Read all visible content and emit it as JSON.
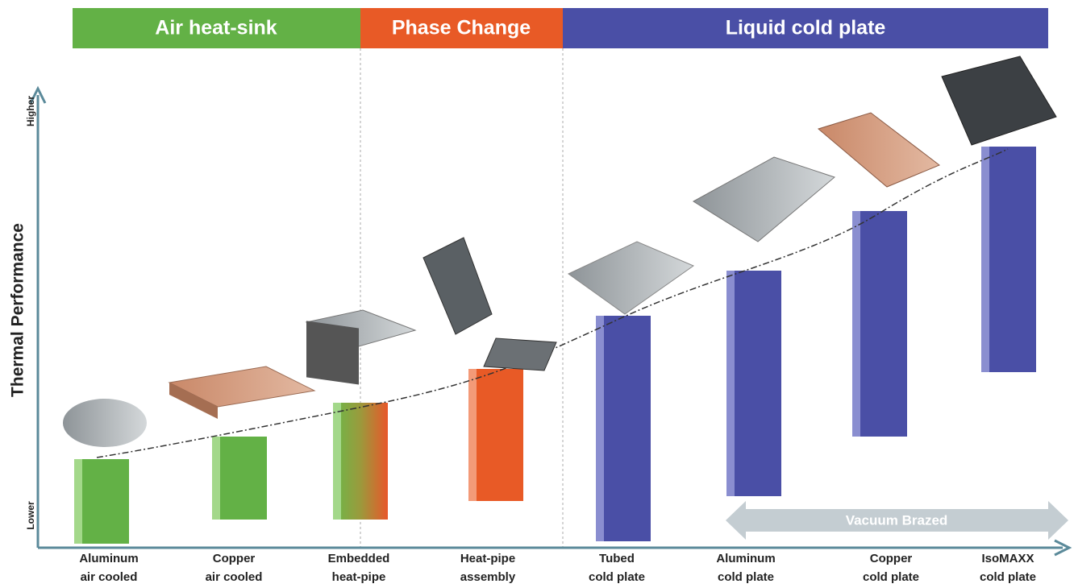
{
  "header": {
    "sections": [
      "Air heat-sink",
      "Phase Change",
      "Liquid cold plate"
    ]
  },
  "axis": {
    "label": "Thermal Performance",
    "high": "Higher",
    "low": "Lower"
  },
  "items": [
    {
      "line1": "Aluminum",
      "line2": "air cooled"
    },
    {
      "line1": "Copper",
      "line2": "air cooled"
    },
    {
      "line1": "Embedded",
      "line2": "heat-pipe"
    },
    {
      "line1": "Heat-pipe",
      "line2": "assembly"
    },
    {
      "line1": "Tubed",
      "line2": "cold plate"
    },
    {
      "line1": "Aluminum",
      "line2": "cold plate"
    },
    {
      "line1": "Copper",
      "line2": "cold plate"
    },
    {
      "line1": "IsoMAXX",
      "line2": "cold plate"
    }
  ],
  "callout": "Vacuum Brazed"
}
